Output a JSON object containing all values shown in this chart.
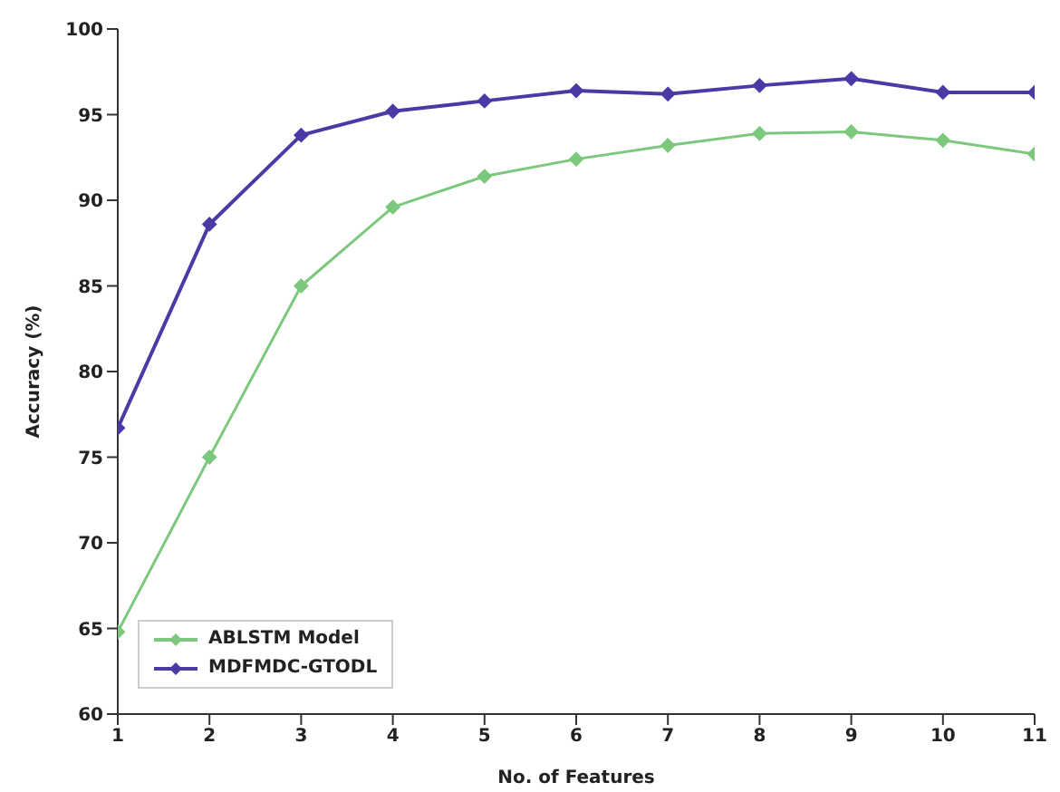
{
  "chart_data": {
    "type": "line",
    "xlabel": "No. of Features",
    "ylabel": "Accuracy (%)",
    "x": [
      1,
      2,
      3,
      4,
      5,
      6,
      7,
      8,
      9,
      10,
      11
    ],
    "series": [
      {
        "name": "ABLSTM Model",
        "color": "#7cc87c",
        "values": [
          64.8,
          75.0,
          85.0,
          89.6,
          91.4,
          92.4,
          93.2,
          93.9,
          94.0,
          93.5,
          92.7
        ]
      },
      {
        "name": "MDFMDC-GTODL",
        "color": "#4a3aa6",
        "values": [
          76.7,
          88.6,
          93.8,
          95.2,
          95.8,
          96.4,
          96.2,
          96.7,
          97.1,
          96.3,
          96.3
        ]
      }
    ],
    "xlim": [
      1,
      11
    ],
    "xticks": [
      1,
      2,
      3,
      4,
      5,
      6,
      7,
      8,
      9,
      10,
      11
    ],
    "ylim": [
      60,
      100
    ],
    "yticks": [
      60,
      65,
      70,
      75,
      80,
      85,
      90,
      95,
      100
    ],
    "grid": false,
    "legend": "bottom left",
    "marker": "diamond",
    "line_style": "solid"
  }
}
